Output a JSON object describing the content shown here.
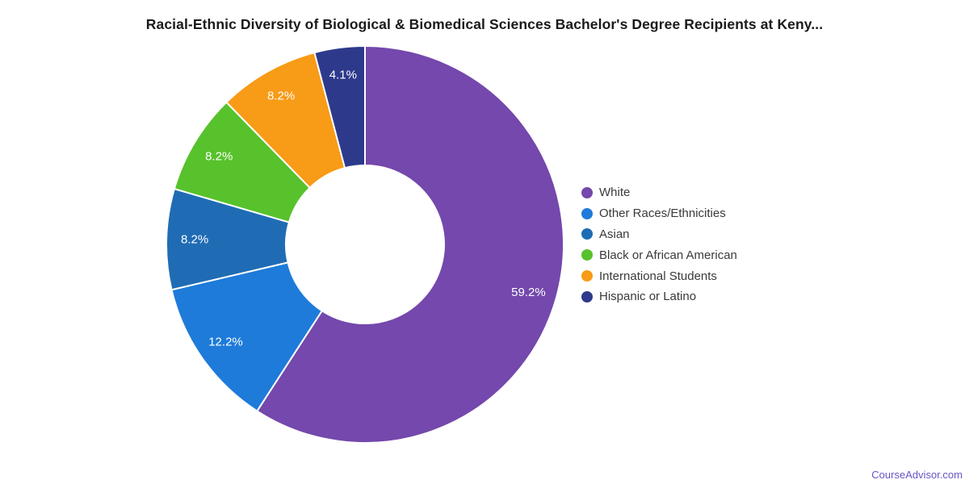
{
  "title": "Racial-Ethnic Diversity of Biological & Biomedical Sciences Bachelor's Degree Recipients at Keny...",
  "footer": {
    "brand": "CourseAdvisor.com",
    "brand_color": "#6656c8"
  },
  "chart_data": {
    "type": "pie",
    "subtype": "donut",
    "title": "Racial-Ethnic Diversity of Biological & Biomedical Sciences Bachelor's Degree Recipients at Keny...",
    "categories": [
      "White",
      "Other Races/Ethnicities",
      "Asian",
      "Black or African American",
      "International Students",
      "Hispanic or Latino"
    ],
    "values": [
      59.2,
      12.2,
      8.2,
      8.2,
      8.2,
      4.1
    ],
    "labels": [
      "59.2%",
      "12.2%",
      "8.2%",
      "8.2%",
      "8.2%",
      "4.1%"
    ],
    "colors": [
      "#7448AC",
      "#1E7BD9",
      "#1F6CB5",
      "#57C22B",
      "#F89B16",
      "#2D3A8C"
    ],
    "label_color": "#FFFFFF",
    "slice_border_color": "#FFFFFF",
    "legend_position": "right",
    "direction": "clockwise",
    "start_angle_deg": 0
  }
}
